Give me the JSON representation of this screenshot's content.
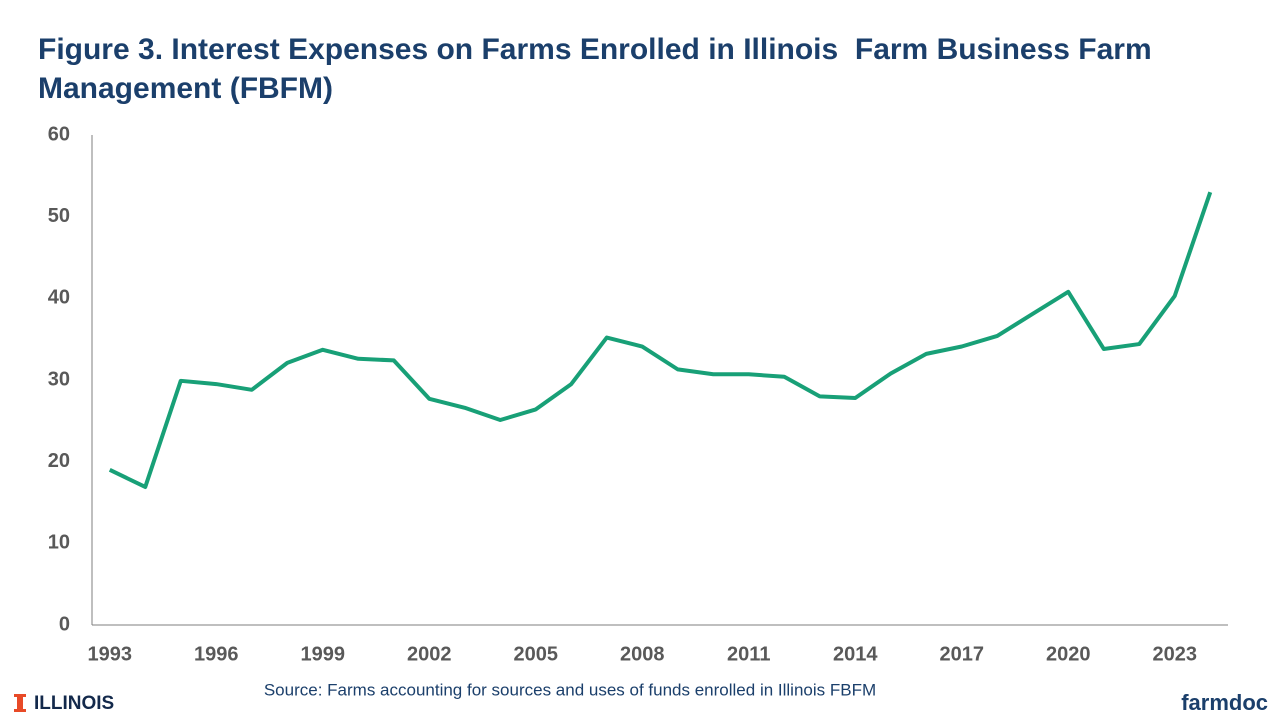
{
  "chart_data": {
    "type": "line",
    "title": "Figure 3. Interest Expenses on Farms Enrolled in Illinois  Farm Business Farm Management (FBFM)",
    "categories": [
      "1993",
      null,
      null,
      "1996",
      null,
      null,
      "1999",
      null,
      null,
      "2002",
      null,
      null,
      "2005",
      null,
      null,
      "2008",
      null,
      null,
      "2011",
      null,
      null,
      "2014",
      null,
      null,
      "2017",
      null,
      null,
      "2020",
      null,
      null,
      "2023",
      null
    ],
    "values": [
      19.0,
      16.9,
      29.9,
      29.5,
      28.8,
      32.1,
      33.7,
      32.6,
      32.4,
      27.7,
      26.6,
      25.1,
      26.4,
      29.5,
      35.2,
      34.1,
      31.3,
      30.7,
      30.7,
      30.4,
      28.0,
      27.8,
      30.8,
      33.2,
      34.1,
      35.4,
      38.1,
      40.8,
      33.8,
      34.4,
      40.3,
      53.0
    ],
    "color": "#18a077",
    "ylim": [
      0,
      60
    ],
    "yticks": [
      0,
      10,
      20,
      30,
      40,
      50,
      60
    ],
    "grid": false,
    "source": "Source:  Farms accounting for sources and uses of funds enrolled in Illinois FBFM",
    "logo_left": "ILLINOIS",
    "logo_right": "farmdoc"
  }
}
